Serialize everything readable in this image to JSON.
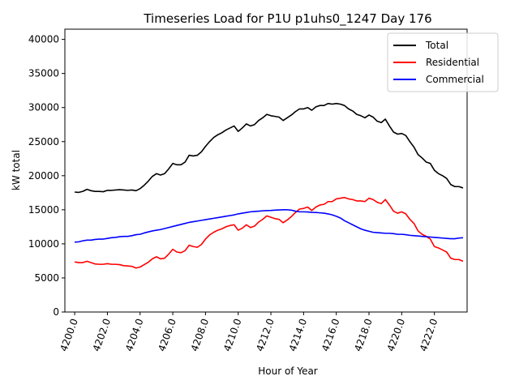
{
  "chart_data": {
    "type": "line",
    "title": "Timeseries Load for P1U p1uhs0_1247  Day 176",
    "xlabel": "Hour of Year",
    "ylabel": "kW total",
    "xlim": [
      4199.4,
      4224.0
    ],
    "ylim": [
      0,
      41500
    ],
    "x_ticks": [
      4200,
      4202,
      4204,
      4206,
      4208,
      4210,
      4212,
      4214,
      4216,
      4218,
      4220,
      4222
    ],
    "x_tick_labels": [
      "4200.0",
      "4202.0",
      "4204.0",
      "4206.0",
      "4208.0",
      "4210.0",
      "4212.0",
      "4214.0",
      "4216.0",
      "4218.0",
      "4220.0",
      "4222.0"
    ],
    "y_ticks": [
      0,
      5000,
      10000,
      15000,
      20000,
      25000,
      30000,
      35000,
      40000
    ],
    "y_tick_labels": [
      "0",
      "5000",
      "10000",
      "15000",
      "20000",
      "25000",
      "30000",
      "35000",
      "40000"
    ],
    "legend_position": "top-right",
    "x_start": 4200,
    "x_step": 0.25,
    "series": [
      {
        "name": "Total",
        "color": "#000000",
        "values": [
          17600,
          17550,
          17700,
          18000,
          17800,
          17700,
          17700,
          17650,
          17850,
          17850,
          17900,
          17950,
          17900,
          17850,
          17900,
          17800,
          18100,
          18600,
          19200,
          19900,
          20300,
          20100,
          20300,
          21000,
          21800,
          21600,
          21600,
          22000,
          23000,
          22900,
          23000,
          23500,
          24300,
          25000,
          25600,
          26000,
          26300,
          26700,
          27000,
          27300,
          26500,
          27000,
          27600,
          27300,
          27500,
          28100,
          28500,
          29000,
          28800,
          28700,
          28600,
          28100,
          28500,
          28900,
          29400,
          29800,
          29800,
          30000,
          29600,
          30100,
          30300,
          30300,
          30600,
          30500,
          30600,
          30500,
          30300,
          29800,
          29500,
          29000,
          28800,
          28500,
          28900,
          28600,
          28000,
          27800,
          28300,
          27300,
          26400,
          26100,
          26200,
          25900,
          25000,
          24200,
          23100,
          22600,
          22000,
          21800,
          20800,
          20300,
          20000,
          19600,
          18700,
          18400,
          18400,
          18200
        ]
      },
      {
        "name": "Residential",
        "color": "#ff0000",
        "values": [
          7350,
          7250,
          7250,
          7450,
          7250,
          7050,
          7000,
          7000,
          7100,
          7000,
          7000,
          6950,
          6800,
          6750,
          6700,
          6450,
          6600,
          6950,
          7300,
          7800,
          8100,
          7800,
          7900,
          8500,
          9200,
          8800,
          8700,
          9000,
          9800,
          9600,
          9500,
          9900,
          10700,
          11300,
          11700,
          12000,
          12200,
          12500,
          12700,
          12800,
          12000,
          12300,
          12800,
          12400,
          12600,
          13200,
          13600,
          14100,
          13900,
          13700,
          13600,
          13100,
          13500,
          14000,
          14600,
          15100,
          15200,
          15400,
          14900,
          15400,
          15700,
          15800,
          16200,
          16200,
          16600,
          16700,
          16800,
          16600,
          16500,
          16300,
          16300,
          16200,
          16700,
          16500,
          16100,
          15900,
          16500,
          15700,
          14800,
          14500,
          14700,
          14400,
          13600,
          13000,
          11900,
          11400,
          11100,
          10700,
          9600,
          9400,
          9100,
          8800,
          7900,
          7700,
          7700,
          7450
        ]
      },
      {
        "name": "Commercial",
        "color": "#0000ff",
        "values": [
          10250,
          10300,
          10450,
          10550,
          10550,
          10650,
          10700,
          10700,
          10800,
          10900,
          10950,
          11050,
          11100,
          11100,
          11200,
          11350,
          11400,
          11600,
          11750,
          11900,
          12000,
          12100,
          12250,
          12400,
          12550,
          12700,
          12850,
          13000,
          13150,
          13250,
          13350,
          13450,
          13550,
          13650,
          13750,
          13850,
          13950,
          14050,
          14150,
          14250,
          14400,
          14500,
          14600,
          14700,
          14750,
          14800,
          14850,
          14880,
          14900,
          14950,
          14980,
          15000,
          15000,
          14950,
          14800,
          14700,
          14700,
          14680,
          14620,
          14600,
          14550,
          14500,
          14400,
          14250,
          14050,
          13800,
          13400,
          13100,
          12800,
          12500,
          12200,
          12000,
          11850,
          11700,
          11650,
          11600,
          11550,
          11550,
          11500,
          11400,
          11400,
          11350,
          11250,
          11200,
          11150,
          11100,
          11050,
          11000,
          10950,
          10900,
          10850,
          10800,
          10750,
          10750,
          10850,
          10900
        ]
      }
    ]
  }
}
